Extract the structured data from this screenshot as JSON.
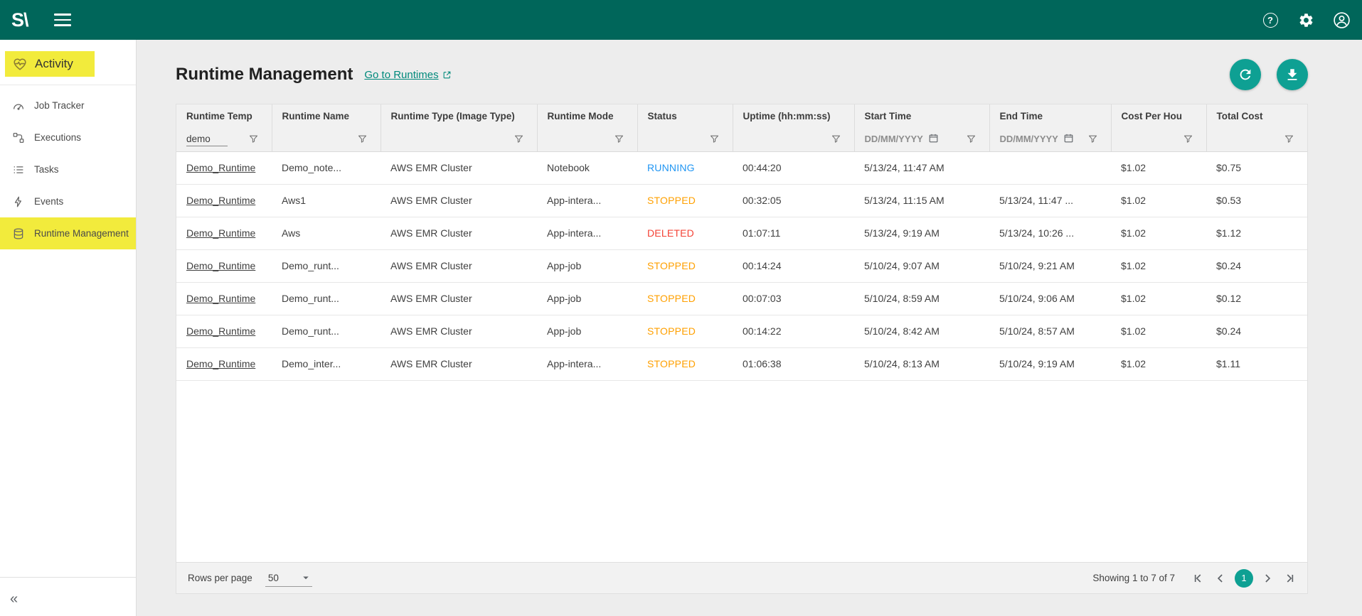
{
  "colors": {
    "topbar_bg": "#00665A",
    "accent": "#0EA093",
    "link": "#00897B",
    "highlight": "#F2EB3C"
  },
  "topbar": {
    "logo_text": "S\\"
  },
  "icons": {
    "help_glyph": "?",
    "collapse_glyph": "«"
  },
  "sidebar": {
    "section_label": "Activity",
    "items": [
      {
        "label": "Job Tracker"
      },
      {
        "label": "Executions"
      },
      {
        "label": "Tasks"
      },
      {
        "label": "Events"
      },
      {
        "label": "Runtime Management"
      }
    ]
  },
  "header": {
    "title": "Runtime Management",
    "go_to_runtimes_label": "Go to Runtimes"
  },
  "table": {
    "columns": [
      "Runtime Temp",
      "Runtime Name",
      "Runtime Type (Image Type)",
      "Runtime Mode",
      "Status",
      "Uptime (hh:mm:ss)",
      "Start Time",
      "End Time",
      "Cost Per Hou",
      "Total Cost"
    ],
    "filters": {
      "runtime_template_value": "demo",
      "start_time_placeholder": "DD/MM/YYYY",
      "end_time_placeholder": "DD/MM/YYYY"
    },
    "status_colors": {
      "RUNNING": "#2196F3",
      "STOPPED": "#FFA000",
      "DELETED": "#F44336"
    },
    "rows": [
      {
        "template": "Demo_Runtime",
        "name": "Demo_note...",
        "type": "AWS EMR Cluster",
        "mode": "Notebook",
        "status": "RUNNING",
        "uptime": "00:44:20",
        "start": "5/13/24, 11:47 AM",
        "end": "",
        "cost_per_hour": "$1.02",
        "total_cost": "$0.75"
      },
      {
        "template": "Demo_Runtime",
        "name": "Aws1",
        "type": "AWS EMR Cluster",
        "mode": "App-intera...",
        "status": "STOPPED",
        "uptime": "00:32:05",
        "start": "5/13/24, 11:15 AM",
        "end": "5/13/24, 11:47 ...",
        "cost_per_hour": "$1.02",
        "total_cost": "$0.53"
      },
      {
        "template": "Demo_Runtime",
        "name": "Aws",
        "type": "AWS EMR Cluster",
        "mode": "App-intera...",
        "status": "DELETED",
        "uptime": "01:07:11",
        "start": "5/13/24, 9:19 AM",
        "end": "5/13/24, 10:26 ...",
        "cost_per_hour": "$1.02",
        "total_cost": "$1.12"
      },
      {
        "template": "Demo_Runtime",
        "name": "Demo_runt...",
        "type": "AWS EMR Cluster",
        "mode": "App-job",
        "status": "STOPPED",
        "uptime": "00:14:24",
        "start": "5/10/24, 9:07 AM",
        "end": "5/10/24, 9:21 AM",
        "cost_per_hour": "$1.02",
        "total_cost": "$0.24"
      },
      {
        "template": "Demo_Runtime",
        "name": "Demo_runt...",
        "type": "AWS EMR Cluster",
        "mode": "App-job",
        "status": "STOPPED",
        "uptime": "00:07:03",
        "start": "5/10/24, 8:59 AM",
        "end": "5/10/24, 9:06 AM",
        "cost_per_hour": "$1.02",
        "total_cost": "$0.12"
      },
      {
        "template": "Demo_Runtime",
        "name": "Demo_runt...",
        "type": "AWS EMR Cluster",
        "mode": "App-job",
        "status": "STOPPED",
        "uptime": "00:14:22",
        "start": "5/10/24, 8:42 AM",
        "end": "5/10/24, 8:57 AM",
        "cost_per_hour": "$1.02",
        "total_cost": "$0.24"
      },
      {
        "template": "Demo_Runtime",
        "name": "Demo_inter...",
        "type": "AWS EMR Cluster",
        "mode": "App-intera...",
        "status": "STOPPED",
        "uptime": "01:06:38",
        "start": "5/10/24, 8:13 AM",
        "end": "5/10/24, 9:19 AM",
        "cost_per_hour": "$1.02",
        "total_cost": "$1.11"
      }
    ]
  },
  "footer": {
    "rows_per_page_label": "Rows per page",
    "rows_per_page_value": "50",
    "showing_text": "Showing 1 to 7 of 7",
    "current_page": "1"
  }
}
